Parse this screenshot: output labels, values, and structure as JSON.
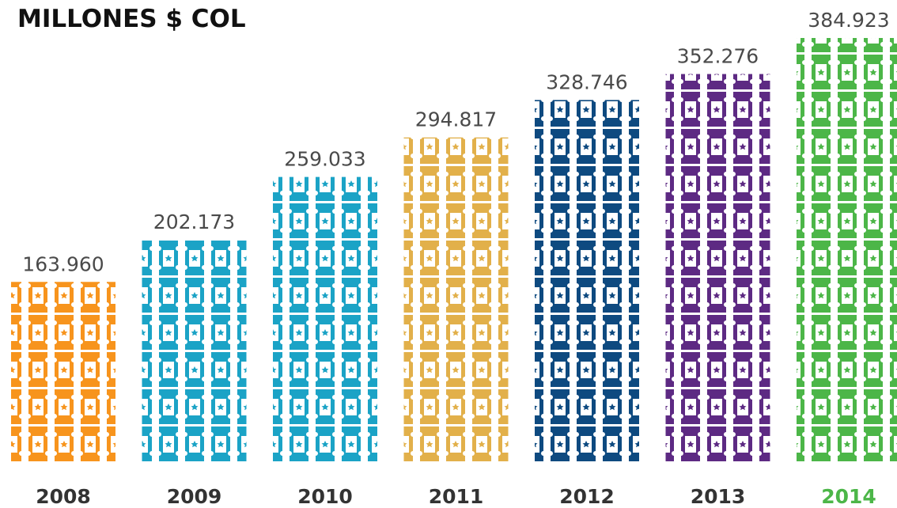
{
  "chart_data": {
    "type": "pictogram",
    "title": "MILLONES $ COL",
    "categories": [
      "2008",
      "2009",
      "2010",
      "2011",
      "2012",
      "2013",
      "2014"
    ],
    "values": [
      163960,
      202173,
      259033,
      294817,
      328746,
      352276,
      384923
    ],
    "value_labels": [
      "163.960",
      "202.173",
      "259.033",
      "294.817",
      "328.746",
      "352.276",
      "384.923"
    ],
    "colors": [
      "#f7941d",
      "#1ba3c6",
      "#1ba3c6",
      "#e2b04a",
      "#0e4a80",
      "#5d2a83",
      "#4cb648"
    ],
    "ylim": [
      0,
      384923
    ]
  }
}
